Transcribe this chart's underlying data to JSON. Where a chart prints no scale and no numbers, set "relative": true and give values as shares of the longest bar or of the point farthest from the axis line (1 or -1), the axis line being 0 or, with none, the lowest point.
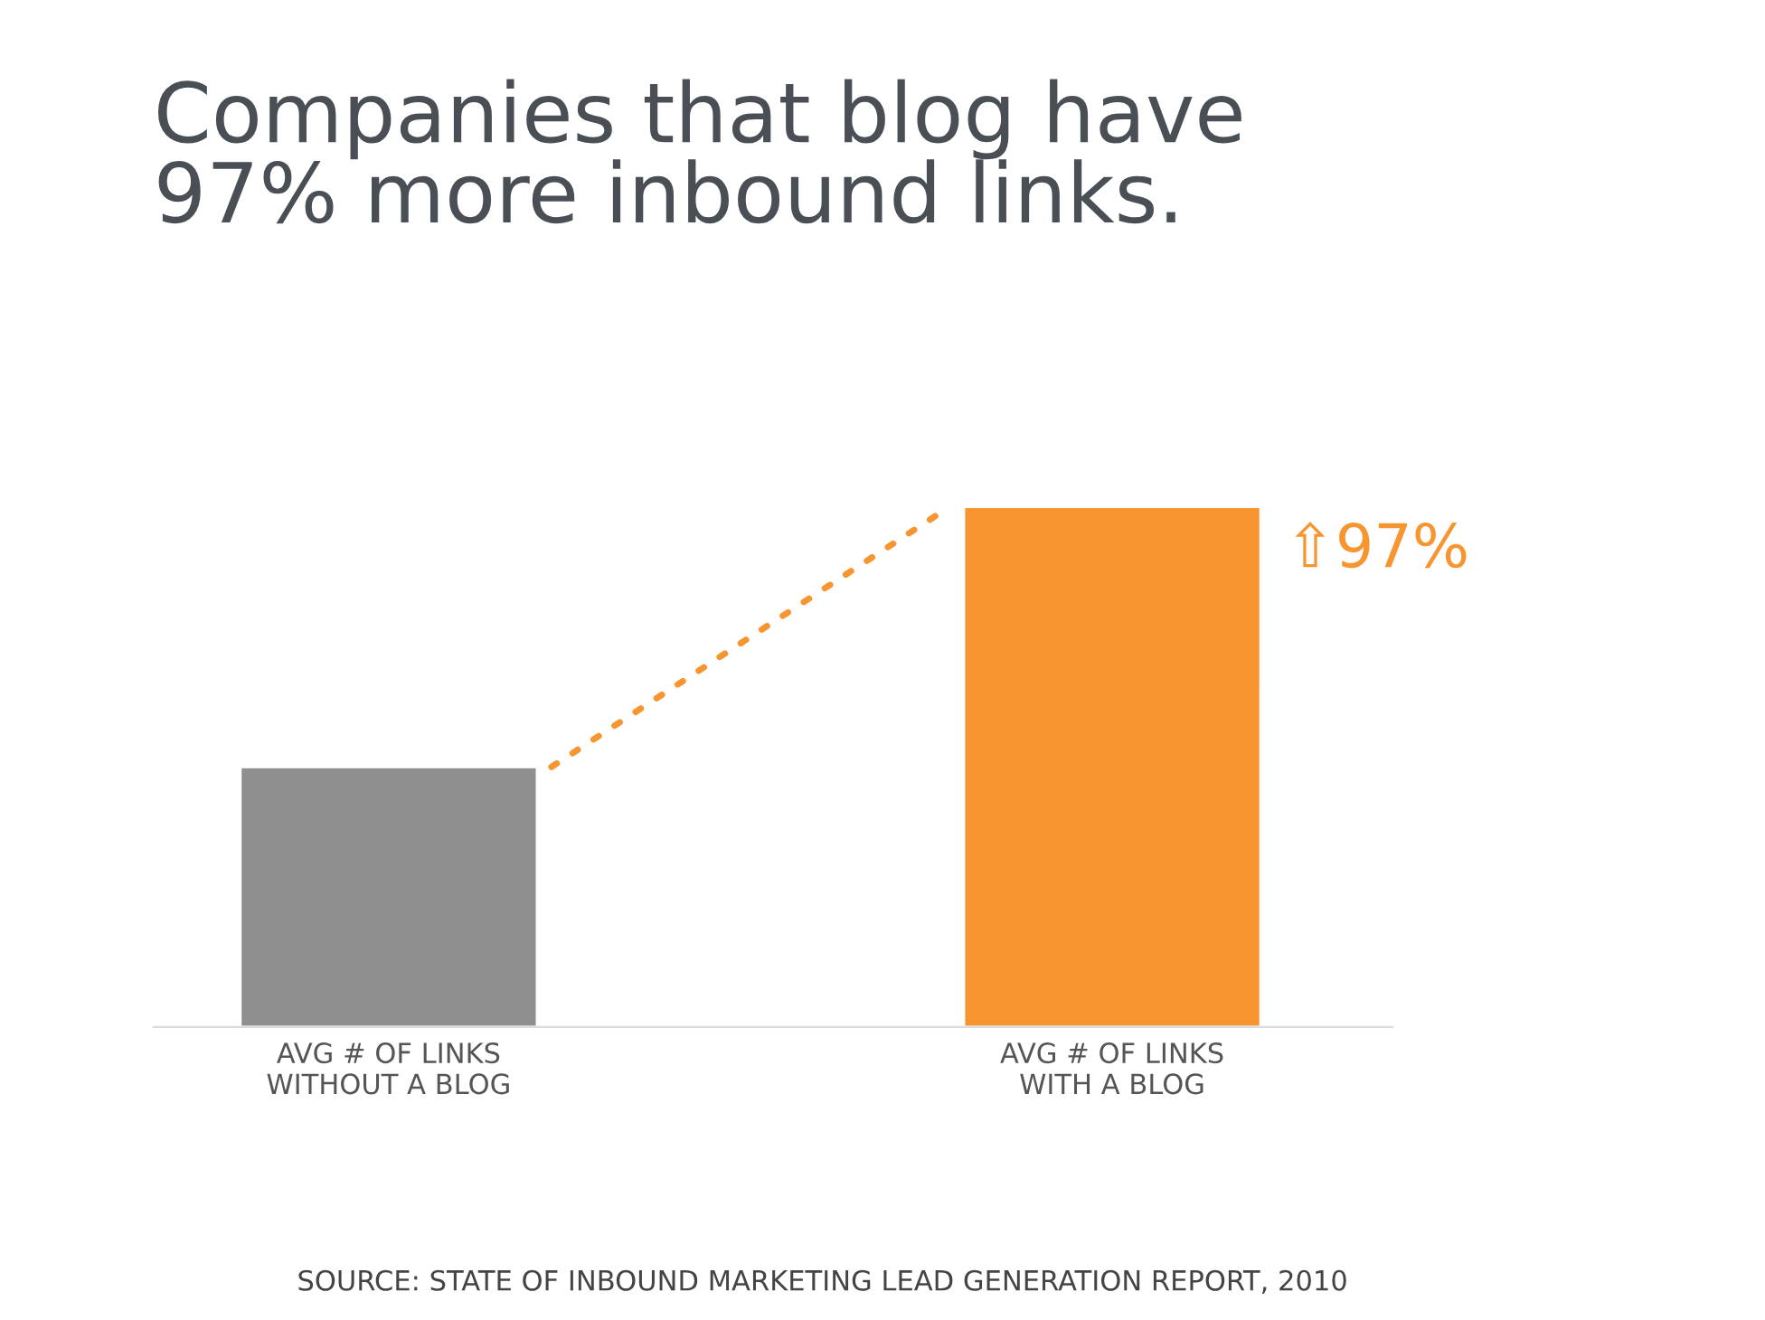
{
  "chart_data": {
    "type": "bar",
    "relative": true,
    "title": "Companies that blog have\n97% more inbound links.",
    "categories": [
      "AVG # OF LINKS\nWITHOUT A BLOG",
      "AVG # OF LINKS\nWITH A BLOG"
    ],
    "values": [
      0.5,
      1
    ],
    "colors": [
      "#8f8f8f",
      "#f79530"
    ],
    "annotations": [
      "⇧97%",
      "SOURCE: STATE OF INBOUND MARKETING LEAD GENERATION REPORT, 2010"
    ]
  }
}
